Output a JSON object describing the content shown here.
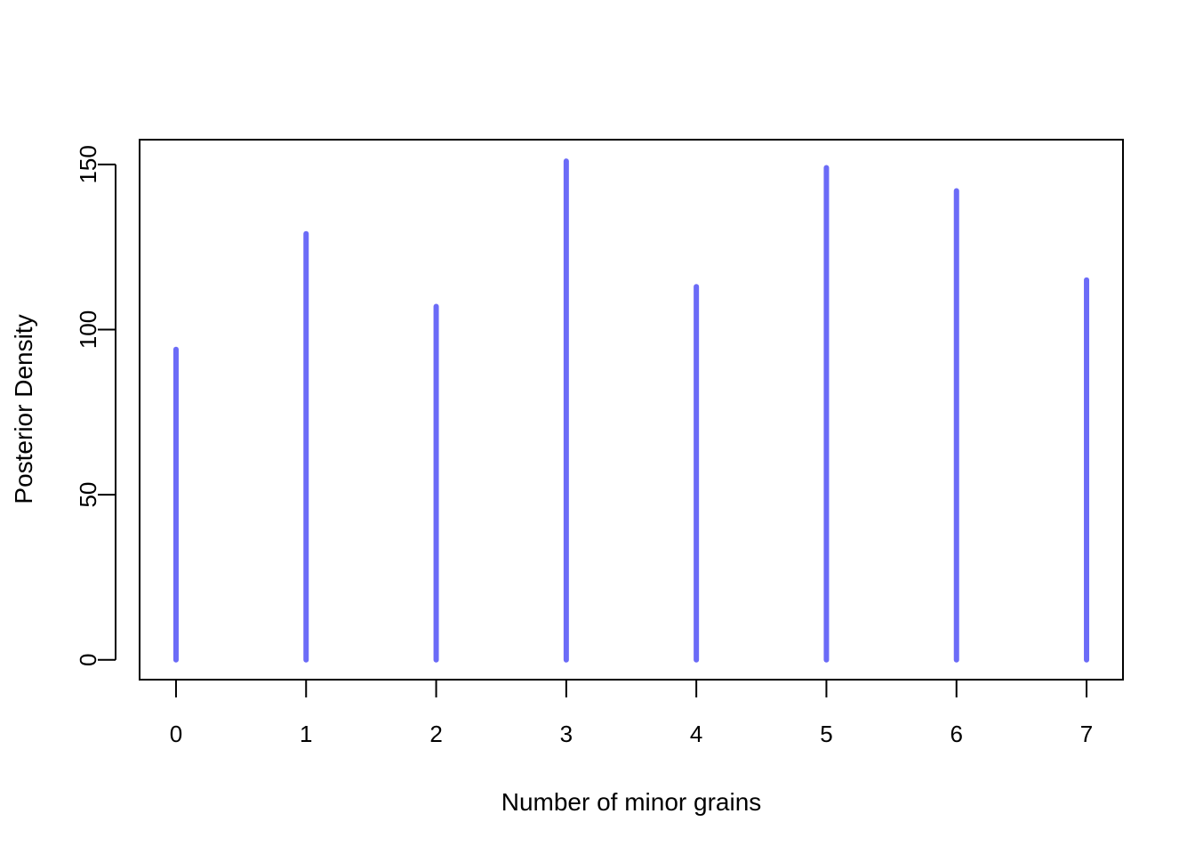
{
  "chart_data": {
    "type": "bar",
    "style": "vertical-lines",
    "categories": [
      "0",
      "1",
      "2",
      "3",
      "4",
      "5",
      "6",
      "7"
    ],
    "x": [
      0,
      1,
      2,
      3,
      4,
      5,
      6,
      7
    ],
    "values": [
      94,
      129,
      107,
      151,
      113,
      149,
      142,
      115
    ],
    "xlabel": "Number of minor grains",
    "ylabel": "Posterior Density",
    "xlim": [
      -0.28,
      7.28
    ],
    "ylim": [
      -6,
      157.5
    ],
    "xticks": [
      0,
      1,
      2,
      3,
      4,
      5,
      6,
      7
    ],
    "yticks": [
      0,
      50,
      100,
      150
    ],
    "grid": false,
    "legend": "none",
    "color": "#6b6bf7"
  }
}
